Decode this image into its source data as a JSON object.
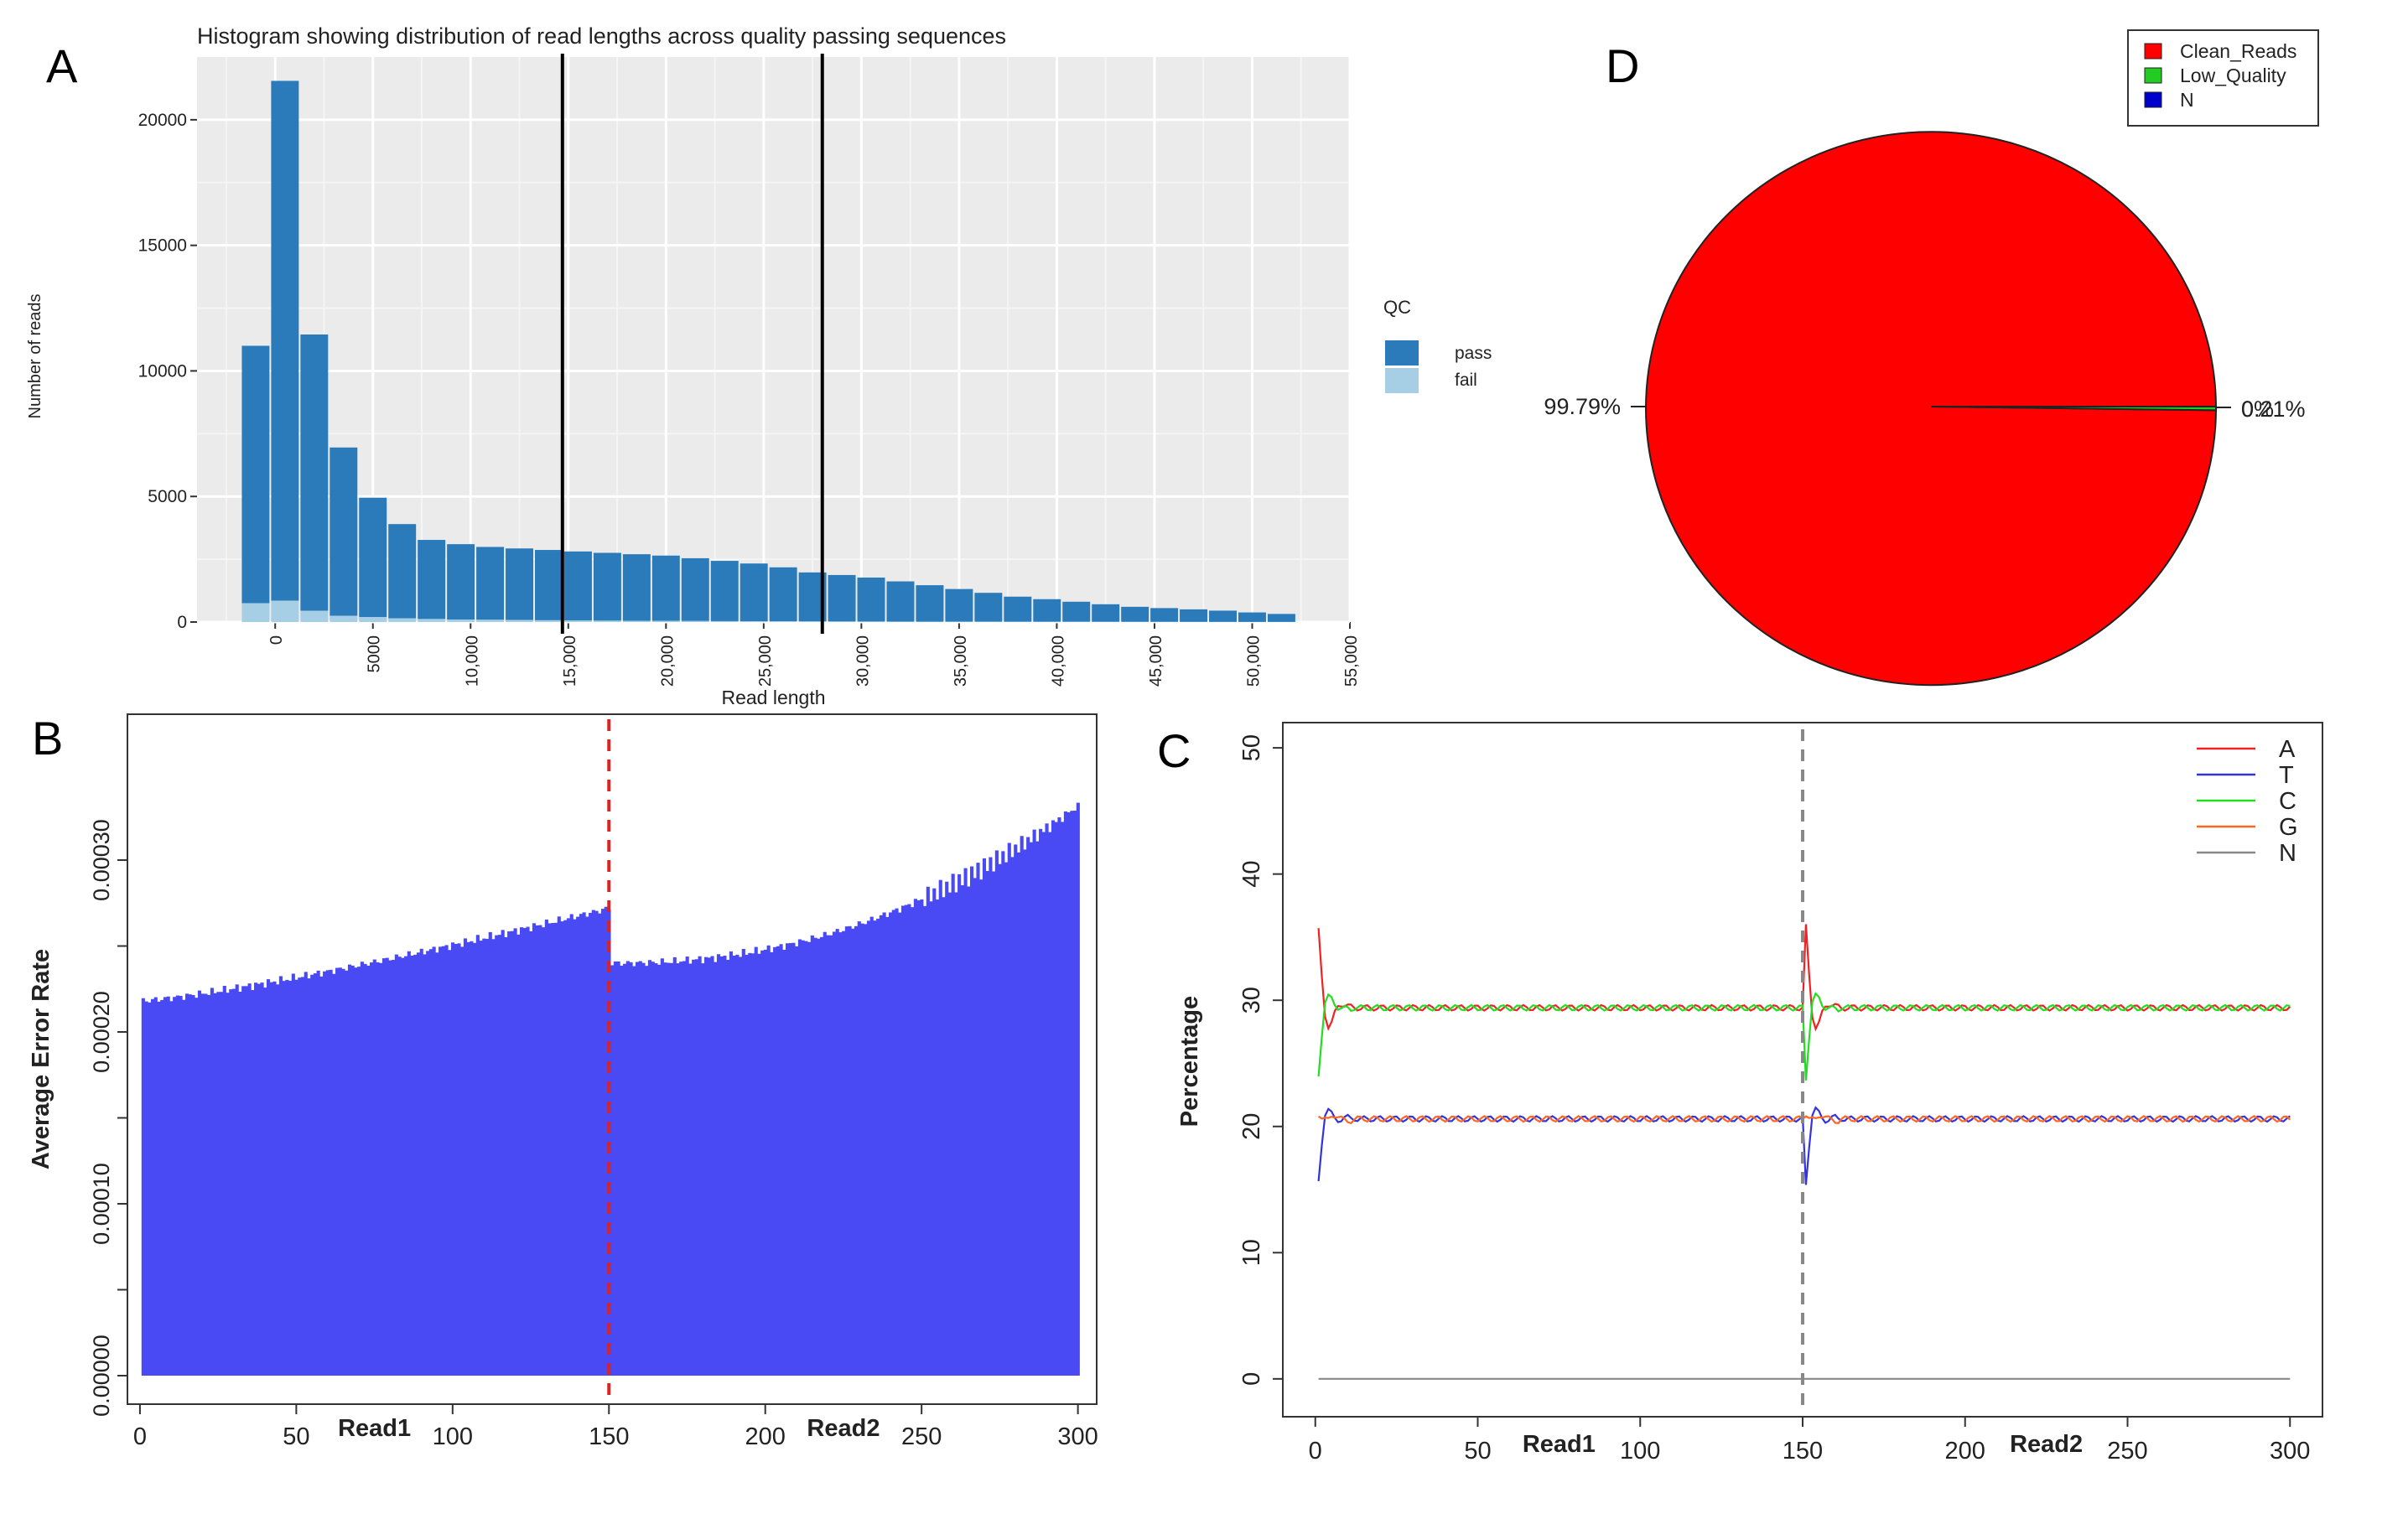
{
  "panel_labels": [
    "A",
    "B",
    "C",
    "D"
  ],
  "chart_data": [
    {
      "id": "A",
      "type": "bar",
      "title": "Histogram showing distribution of read lengths across quality passing sequences",
      "xlabel": "Read length",
      "ylabel": "Number of reads",
      "xlim": [
        -4000,
        55000
      ],
      "ylim": [
        0,
        22500
      ],
      "x_ticks": [
        0,
        5000,
        10000,
        15000,
        20000,
        25000,
        30000,
        35000,
        40000,
        45000,
        50000,
        55000
      ],
      "x_tick_labels": [
        "0",
        "5000",
        "10,000",
        "15,000",
        "20,000",
        "25,000",
        "30,000",
        "35,000",
        "40,000",
        "45,000",
        "50,000",
        "55,000"
      ],
      "y_ticks": [
        0,
        5000,
        10000,
        15000,
        20000
      ],
      "y_tick_labels": [
        "0",
        "5000",
        "10000",
        "15000",
        "20000"
      ],
      "bin_width": 1500,
      "bin_centers": [
        -1000,
        500,
        2000,
        3500,
        5000,
        6500,
        8000,
        9500,
        11000,
        12500,
        14000,
        15500,
        17000,
        18500,
        20000,
        21500,
        23000,
        24500,
        26000,
        27500,
        29000,
        30500,
        32000,
        33500,
        35000,
        36500,
        38000,
        39500,
        41000,
        42500,
        44000,
        45500,
        47000,
        48500,
        50000,
        51500
      ],
      "series": [
        {
          "name": "pass",
          "color": "#2b7bba",
          "values": [
            10250,
            20700,
            11000,
            6700,
            4750,
            3750,
            3150,
            3000,
            2900,
            2850,
            2800,
            2750,
            2700,
            2650,
            2600,
            2500,
            2400,
            2300,
            2150,
            1950,
            1850,
            1750,
            1600,
            1450,
            1300,
            1150,
            1000,
            900,
            800,
            700,
            600,
            550,
            500,
            450,
            380,
            320
          ]
        },
        {
          "name": "fail",
          "color": "#a6cfe6",
          "values": [
            750,
            850,
            450,
            250,
            200,
            150,
            120,
            100,
            90,
            80,
            70,
            60,
            55,
            50,
            45,
            40,
            35,
            30,
            28,
            25,
            22,
            20,
            18,
            16,
            14,
            12,
            10,
            9,
            8,
            7,
            6,
            5,
            4,
            3,
            2,
            2
          ]
        }
      ],
      "vlines": [
        14700,
        28000
      ],
      "legend_title": "QC",
      "legend": [
        "pass",
        "fail"
      ]
    },
    {
      "id": "B",
      "type": "bar",
      "xlabel": "",
      "ylabel": "Average Error Rate",
      "xlim": [
        -4,
        306
      ],
      "ylim": [
        0,
        0.00038
      ],
      "x_ticks": [
        0,
        50,
        100,
        150,
        200,
        250,
        300
      ],
      "x_tick_labels": [
        "0",
        "50",
        "100",
        "150",
        "200",
        "250",
        "300"
      ],
      "y_ticks": [
        0,
        5e-05,
        0.0001,
        0.00015,
        0.0002,
        0.00025,
        0.0003
      ],
      "y_tick_labels": [
        "0.00000",
        "",
        "0.00010",
        "",
        "0.00020",
        "",
        "0.00030"
      ],
      "read_labels": [
        "Read1",
        "Read2"
      ],
      "divider_x": 150,
      "bar_color": "#4a4af4",
      "divider_color": "#dd2222",
      "profile": {
        "read1_start": 0.000218,
        "read1_end": 0.000272,
        "read2_start": 0.00024,
        "read2_end": 0.000333
      }
    },
    {
      "id": "C",
      "type": "line",
      "xlabel": "",
      "ylabel": "Percentage",
      "xlim": [
        -10,
        310
      ],
      "ylim": [
        -3,
        52
      ],
      "x_ticks": [
        0,
        50,
        100,
        150,
        200,
        250,
        300
      ],
      "x_tick_labels": [
        "0",
        "50",
        "100",
        "150",
        "200",
        "250",
        "300"
      ],
      "y_ticks": [
        0,
        10,
        20,
        30,
        40,
        50
      ],
      "y_tick_labels": [
        "0",
        "10",
        "20",
        "30",
        "40",
        "50"
      ],
      "read_labels": [
        "Read1",
        "Read2"
      ],
      "divider_x": 150,
      "divider_color": "#888888",
      "series": [
        {
          "name": "A",
          "color": "#ee2222",
          "base": 29.4,
          "start": 35.5
        },
        {
          "name": "T",
          "color": "#3333dd",
          "base": 20.6,
          "start": 15.5
        },
        {
          "name": "C",
          "color": "#22dd22",
          "base": 29.4,
          "start": 24.0
        },
        {
          "name": "G",
          "color": "#ff6622",
          "base": 20.6,
          "start": 21.0
        },
        {
          "name": "N",
          "color": "#888888",
          "base": 0.0,
          "start": 0.0
        }
      ],
      "legend": [
        "A",
        "T",
        "C",
        "G",
        "N"
      ]
    },
    {
      "id": "D",
      "type": "pie",
      "legend": [
        "Clean_Reads",
        "Low_Quality",
        "N"
      ],
      "values": [
        99.79,
        0.21,
        0.0
      ],
      "labels": [
        "99.79%",
        "0.21%",
        "0%"
      ],
      "colors": [
        "#ff0000",
        "#22cc22",
        "#0000cc"
      ]
    }
  ]
}
